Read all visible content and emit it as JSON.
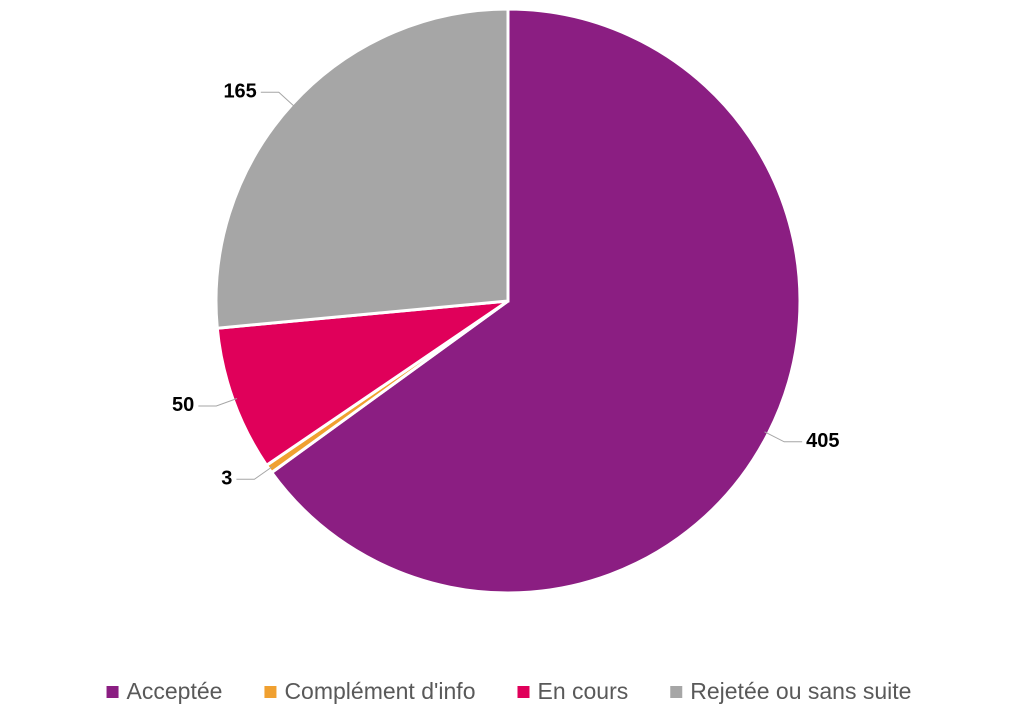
{
  "chart_data": {
    "type": "pie",
    "categories": [
      "Acceptée",
      "Complément d'info",
      "En cours",
      "Rejetée ou sans suite"
    ],
    "values": [
      405,
      3,
      50,
      165
    ],
    "colors": [
      "#8b1e82",
      "#f0a030",
      "#e0005a",
      "#a6a6a6"
    ],
    "legend": "bottom"
  }
}
